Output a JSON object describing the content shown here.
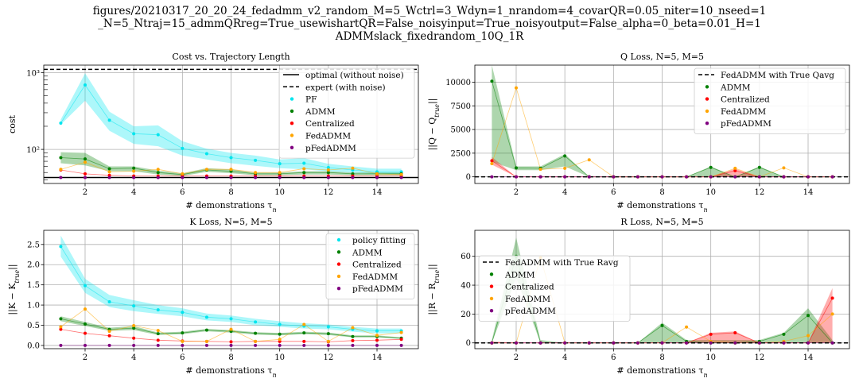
{
  "figure": {
    "title_lines": [
      "figures/20210317_20_20_24_fedadmm_v2_random_M=5_Wctrl=3_Wdyn=1_nrandom=4_covarQR=0.05_niter=10_nseed=1",
      "_N=5_Ntraj=15_admmQRreg=True_usewishartQR=False_noisyinput=True_noisyoutput=False_alpha=0_beta=0.01_H=1",
      "ADMMslack_fixedrandom_10Q_1R"
    ]
  },
  "colors": {
    "PF": "#00e5ee",
    "policy fitting": "#00e5ee",
    "ADMM": "#008000",
    "Centralized": "#ff0000",
    "FedADMM": "#ffa500",
    "pFedADMM": "#800080",
    "line": "#000000"
  },
  "chart_data": [
    {
      "type": "scatter",
      "title": "Cost vs. Trajectory Length",
      "xlabel": "# demonstrations τ_n",
      "ylabel": "cost",
      "xscale": "linear",
      "yscale": "log",
      "xlim": [
        0.3,
        15.7
      ],
      "ylim": [
        36,
        1250
      ],
      "xticks": [
        2,
        4,
        6,
        8,
        10,
        12,
        14
      ],
      "xtick_labels": [
        "2",
        "4",
        "6",
        "8",
        "10",
        "12",
        "14"
      ],
      "yticks": [
        100,
        1000
      ],
      "ytick_labels": [
        "10²",
        "10³"
      ],
      "grid": true,
      "legend_position": "top-right",
      "hlines": [
        {
          "name": "optimal (without noise)",
          "y": 43,
          "style": "solid"
        },
        {
          "name": "expert (with noise)",
          "y": 1100,
          "style": "dashed"
        }
      ],
      "x": [
        1,
        2,
        3,
        4,
        5,
        6,
        7,
        8,
        9,
        10,
        11,
        12,
        13,
        14,
        15
      ],
      "series": [
        {
          "name": "PF",
          "color_key": "PF",
          "values": [
            220,
            690,
            240,
            160,
            155,
            103,
            88,
            78,
            72,
            65,
            66,
            58,
            54,
            51,
            51
          ],
          "band_low": [
            210,
            430,
            175,
            118,
            110,
            83,
            74,
            66,
            61,
            57,
            55,
            52,
            50,
            48,
            48
          ],
          "band_high": [
            245,
            980,
            310,
            200,
            205,
            128,
            102,
            90,
            83,
            74,
            77,
            65,
            60,
            56,
            56
          ]
        },
        {
          "name": "ADMM",
          "color_key": "ADMM",
          "values": [
            78,
            75,
            56,
            57,
            50,
            47,
            54,
            52,
            48,
            48,
            50,
            50,
            48,
            48,
            48
          ],
          "band_low": [
            66,
            62,
            52,
            52,
            47,
            45,
            51,
            49,
            46,
            46,
            47,
            47,
            46,
            46,
            46
          ],
          "band_high": [
            92,
            90,
            60,
            60,
            53,
            49,
            57,
            55,
            50,
            50,
            52,
            52,
            50,
            50,
            50
          ]
        },
        {
          "name": "Centralized",
          "color_key": "Centralized",
          "values": [
            54,
            48,
            46,
            45,
            45,
            45,
            45,
            45,
            45,
            45,
            45,
            45,
            45,
            45,
            45
          ],
          "band_low": [],
          "band_high": []
        },
        {
          "name": "FedADMM",
          "color_key": "FedADMM",
          "values": [
            55,
            68,
            51,
            52,
            55,
            48,
            55,
            55,
            50,
            50,
            56,
            54,
            57,
            48,
            47
          ],
          "band_low": [],
          "band_high": []
        },
        {
          "name": "pFedADMM",
          "color_key": "pFedADMM",
          "values": [
            43,
            43,
            43,
            43,
            43,
            43,
            43,
            43,
            43,
            43,
            43,
            43,
            43,
            43,
            43
          ],
          "band_low": [],
          "band_high": []
        }
      ],
      "legend": [
        "optimal (without noise)",
        "expert (with noise)",
        "PF",
        "ADMM",
        "Centralized",
        "FedADMM",
        "pFedADMM"
      ]
    },
    {
      "type": "scatter",
      "title": "Q Loss, N=5, M=5",
      "xlabel": "# demonstrations τ_n",
      "ylabel": "||Q − Q_true||",
      "xscale": "linear",
      "yscale": "linear",
      "xlim": [
        0.3,
        15.7
      ],
      "ylim": [
        -700,
        11800
      ],
      "xticks": [
        2,
        4,
        6,
        8,
        10,
        12,
        14
      ],
      "xtick_labels": [
        "2",
        "4",
        "6",
        "8",
        "10",
        "12",
        "14"
      ],
      "yticks": [
        0,
        2500,
        5000,
        7500,
        10000
      ],
      "ytick_labels": [
        "0",
        "2500",
        "5000",
        "7500",
        "10000"
      ],
      "grid": true,
      "legend_position": "top-right",
      "hlines": [
        {
          "name": "FedADMM with True Qavg",
          "y": 0,
          "style": "dashed"
        }
      ],
      "x": [
        1,
        2,
        3,
        4,
        5,
        6,
        7,
        8,
        9,
        10,
        11,
        12,
        13,
        14,
        15
      ],
      "series": [
        {
          "name": "ADMM",
          "color_key": "ADMM",
          "values": [
            10100,
            950,
            900,
            2200,
            0,
            0,
            0,
            0,
            0,
            1000,
            0,
            1000,
            0,
            0,
            0
          ],
          "band_low": [
            1600,
            700,
            700,
            1100,
            0,
            0,
            0,
            0,
            0,
            0,
            0,
            0,
            0,
            0,
            0
          ],
          "band_high": [
            11800,
            1100,
            1100,
            2400,
            0,
            0,
            0,
            0,
            0,
            1100,
            0,
            1100,
            0,
            0,
            0
          ]
        },
        {
          "name": "Centralized",
          "color_key": "Centralized",
          "values": [
            1700,
            0,
            0,
            0,
            0,
            0,
            0,
            0,
            0,
            0,
            650,
            0,
            0,
            0,
            0
          ],
          "band_low": [
            1300,
            0,
            0,
            0,
            0,
            0,
            0,
            0,
            0,
            0,
            0,
            0,
            0,
            0,
            0
          ],
          "band_high": [
            2100,
            0,
            0,
            0,
            0,
            0,
            0,
            0,
            0,
            0,
            850,
            0,
            0,
            0,
            0
          ]
        },
        {
          "name": "FedADMM",
          "color_key": "FedADMM",
          "values": [
            1400,
            9400,
            800,
            900,
            1800,
            0,
            0,
            0,
            0,
            0,
            900,
            0,
            950,
            0,
            0
          ],
          "band_low": [],
          "band_high": []
        },
        {
          "name": "pFedADMM",
          "color_key": "pFedADMM",
          "values": [
            0,
            0,
            0,
            0,
            0,
            0,
            0,
            0,
            0,
            0,
            0,
            0,
            0,
            0,
            0
          ],
          "band_low": [],
          "band_high": []
        }
      ],
      "legend": [
        "FedADMM with True Qavg",
        "ADMM",
        "Centralized",
        "FedADMM",
        "pFedADMM"
      ]
    },
    {
      "type": "scatter",
      "title": "K Loss, N=5, M=5",
      "xlabel": "# demonstrations τ_n",
      "ylabel": "||K − K_true||",
      "xscale": "linear",
      "yscale": "linear",
      "xlim": [
        0.3,
        15.7
      ],
      "ylim": [
        -0.08,
        2.85
      ],
      "xticks": [
        2,
        4,
        6,
        8,
        10,
        12,
        14
      ],
      "xtick_labels": [
        "2",
        "4",
        "6",
        "8",
        "10",
        "12",
        "14"
      ],
      "yticks": [
        0.0,
        0.5,
        1.0,
        1.5,
        2.0,
        2.5
      ],
      "ytick_labels": [
        "0.0",
        "0.5",
        "1.0",
        "1.5",
        "2.0",
        "2.5"
      ],
      "grid": true,
      "legend_position": "top-right",
      "hlines": [],
      "x": [
        1,
        2,
        3,
        4,
        5,
        6,
        7,
        8,
        9,
        10,
        11,
        12,
        13,
        14,
        15
      ],
      "series": [
        {
          "name": "policy fitting",
          "color_key": "policy fitting",
          "values": [
            2.45,
            1.48,
            1.08,
            0.98,
            0.88,
            0.82,
            0.7,
            0.66,
            0.58,
            0.52,
            0.48,
            0.46,
            0.4,
            0.36,
            0.36
          ],
          "band_low": [
            2.2,
            1.3,
            0.95,
            0.85,
            0.78,
            0.72,
            0.62,
            0.58,
            0.5,
            0.46,
            0.42,
            0.4,
            0.34,
            0.3,
            0.3
          ],
          "band_high": [
            2.72,
            1.65,
            1.25,
            1.12,
            1.0,
            0.92,
            0.79,
            0.74,
            0.66,
            0.6,
            0.55,
            0.52,
            0.46,
            0.42,
            0.42
          ]
        },
        {
          "name": "ADMM",
          "color_key": "ADMM",
          "values": [
            0.66,
            0.53,
            0.4,
            0.43,
            0.29,
            0.31,
            0.38,
            0.35,
            0.3,
            0.28,
            0.31,
            0.29,
            0.22,
            0.22,
            0.18
          ],
          "band_low": [
            0.6,
            0.48,
            0.36,
            0.38,
            0.26,
            0.28,
            0.35,
            0.32,
            0.27,
            0.25,
            0.28,
            0.26,
            0.2,
            0.2,
            0.16
          ],
          "band_high": [
            0.72,
            0.58,
            0.44,
            0.48,
            0.32,
            0.34,
            0.41,
            0.38,
            0.33,
            0.31,
            0.34,
            0.32,
            0.25,
            0.25,
            0.2
          ]
        },
        {
          "name": "Centralized",
          "color_key": "Centralized",
          "values": [
            0.4,
            0.3,
            0.24,
            0.18,
            0.13,
            0.11,
            0.1,
            0.09,
            0.1,
            0.1,
            0.1,
            0.09,
            0.12,
            0.13,
            0.15
          ],
          "band_low": [],
          "band_high": []
        },
        {
          "name": "FedADMM",
          "color_key": "FedADMM",
          "values": [
            0.46,
            0.9,
            0.35,
            0.49,
            0.37,
            0.1,
            0.1,
            0.4,
            0.1,
            0.15,
            0.52,
            0.1,
            0.44,
            0.25,
            0.32
          ],
          "band_low": [],
          "band_high": []
        },
        {
          "name": "pFedADMM",
          "color_key": "pFedADMM",
          "values": [
            0.0,
            0.0,
            0.0,
            0.0,
            0.0,
            0.0,
            0.0,
            0.0,
            0.0,
            0.0,
            0.0,
            0.0,
            0.0,
            0.0,
            0.0
          ],
          "band_low": [],
          "band_high": []
        }
      ],
      "legend": [
        "policy fitting",
        "ADMM",
        "Centralized",
        "FedADMM",
        "pFedADMM"
      ]
    },
    {
      "type": "scatter",
      "title": "R Loss, N=5, M=5",
      "xlabel": "# demonstrations τ_n",
      "ylabel": "||R − R_true||",
      "xscale": "linear",
      "yscale": "linear",
      "xlim": [
        0.3,
        15.7
      ],
      "ylim": [
        -4,
        78
      ],
      "xticks": [
        2,
        4,
        6,
        8,
        10,
        12,
        14
      ],
      "xtick_labels": [
        "2",
        "4",
        "6",
        "8",
        "10",
        "12",
        "14"
      ],
      "yticks": [
        0,
        20,
        40,
        60
      ],
      "ytick_labels": [
        "0",
        "20",
        "40",
        "60"
      ],
      "grid": true,
      "legend_position": "upper-left",
      "hlines": [
        {
          "name": "FedADMM with True Ravg",
          "y": 0,
          "style": "dashed"
        }
      ],
      "x": [
        1,
        2,
        3,
        4,
        5,
        6,
        7,
        8,
        9,
        10,
        11,
        12,
        13,
        14,
        15
      ],
      "series": [
        {
          "name": "ADMM",
          "color_key": "ADMM",
          "values": [
            0,
            60,
            0,
            0,
            0,
            0,
            0,
            12,
            1,
            0,
            0,
            1,
            6,
            19,
            0
          ],
          "band_low": [
            0,
            45,
            0,
            0,
            0,
            0,
            0,
            0,
            0,
            0,
            0,
            0,
            0,
            0,
            0
          ],
          "band_high": [
            2,
            73,
            2,
            0,
            0,
            0,
            0,
            14,
            2,
            2,
            2,
            2,
            7,
            24,
            2
          ]
        },
        {
          "name": "Centralized",
          "color_key": "Centralized",
          "values": [
            0,
            0,
            0,
            0,
            0,
            0,
            0,
            0,
            0,
            6,
            7,
            0,
            0,
            0,
            31
          ],
          "band_low": [
            0,
            0,
            0,
            0,
            0,
            0,
            0,
            0,
            0,
            0,
            0,
            0,
            0,
            0,
            0
          ],
          "band_high": [
            1,
            0,
            0,
            0,
            0,
            0,
            0,
            0,
            0,
            7,
            8,
            0,
            0,
            0,
            38
          ]
        },
        {
          "name": "FedADMM",
          "color_key": "FedADMM",
          "values": [
            0,
            0,
            59,
            0,
            0,
            0,
            0,
            0,
            11,
            1,
            0,
            0,
            1,
            5,
            20
          ],
          "band_low": [],
          "band_high": []
        },
        {
          "name": "pFedADMM",
          "color_key": "pFedADMM",
          "values": [
            0,
            0,
            0,
            0,
            0,
            0,
            0,
            0,
            0,
            0,
            0,
            0,
            0,
            0,
            0
          ],
          "band_low": [],
          "band_high": []
        }
      ],
      "legend": [
        "FedADMM with True Ravg",
        "ADMM",
        "Centralized",
        "FedADMM",
        "pFedADMM"
      ]
    }
  ]
}
